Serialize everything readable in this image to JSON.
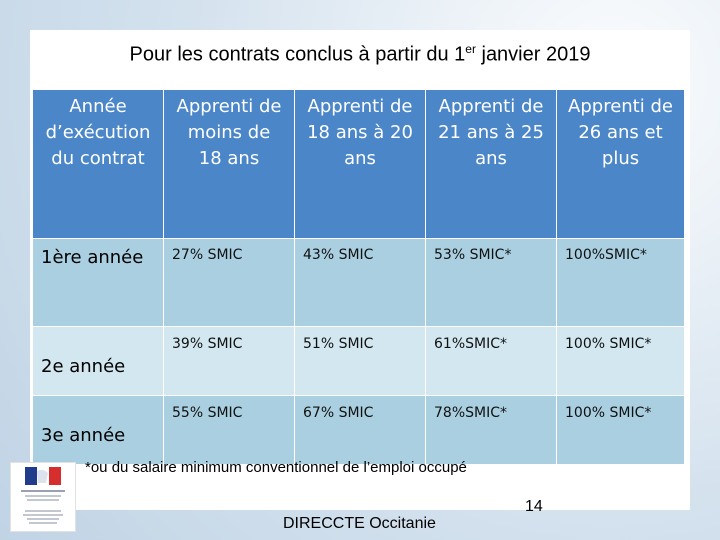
{
  "title": {
    "prefix": "Pour les contrats conclus à partir du 1",
    "sup": "er",
    "suffix": " janvier 2019"
  },
  "table": {
    "headers": [
      [
        "Année",
        "d’exécution",
        "du contrat"
      ],
      [
        "Apprenti de",
        "moins de",
        "18 ans"
      ],
      [
        "Apprenti de",
        "18 ans à 20",
        "ans"
      ],
      [
        "Apprenti de",
        "21 ans à 25",
        "ans"
      ],
      [
        "Apprenti de",
        "26 ans et",
        "plus"
      ]
    ],
    "rows": [
      {
        "label": "1ère année",
        "values": [
          "27% SMIC",
          "43% SMIC",
          "53% SMIC*",
          "100%SMIC*"
        ]
      },
      {
        "label": "2e année",
        "values": [
          "39% SMIC",
          "51% SMIC",
          "61%SMIC*",
          "100% SMIC*"
        ]
      },
      {
        "label": "3e année",
        "values": [
          "55% SMIC",
          "67% SMIC",
          "78%SMIC*",
          "100% SMIC*"
        ]
      }
    ]
  },
  "footnote": "*ou du salaire minimum conventionnel de l’emploi occupé",
  "page_number": "14",
  "organization": "DIRECCTE Occitanie",
  "logo": {
    "icon": "republique-francaise-logo",
    "colors": {
      "blue": "#1f3d8a",
      "red": "#d62d2d"
    }
  }
}
